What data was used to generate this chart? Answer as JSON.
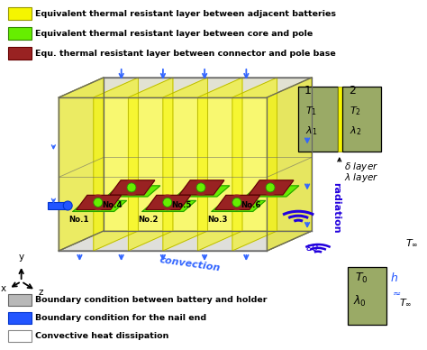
{
  "legend_top": [
    {
      "color": "#f5f500",
      "ec": "#999900",
      "text": "Equivalent thermal resistant layer between adjacent batteries"
    },
    {
      "color": "#66ee00",
      "ec": "#338800",
      "text": "Equivalent thermal resistant layer between core and pole"
    },
    {
      "color": "#992222",
      "ec": "#660000",
      "text": "Equ. thermal resistant layer between connector and pole base"
    }
  ],
  "legend_bottom": [
    {
      "color": "#b8b8b8",
      "ec": "#666666",
      "text": "Boundary condition between battery and holder"
    },
    {
      "color": "#2255ff",
      "ec": "#0033cc",
      "text": "Boundary condition for the nail end"
    },
    {
      "color": "#ffffff",
      "ec": "#888888",
      "text": "Convective heat dissipation"
    }
  ],
  "battery_labels": [
    "No.1",
    "No.2",
    "No.3",
    "No.4",
    "No.5",
    "No.6"
  ],
  "convection_label": "convection",
  "radiation_label": "radiation",
  "bg_color": "#ffffff",
  "yellow_color": "#f5f500",
  "yellow_alpha": 0.55,
  "green_color": "#66ee00",
  "dark_red_color": "#992222",
  "arrow_color": "#3366ff",
  "olive_color": "#9aaa66",
  "gray_wall": "#cccccc",
  "cube_edge": "#666666"
}
